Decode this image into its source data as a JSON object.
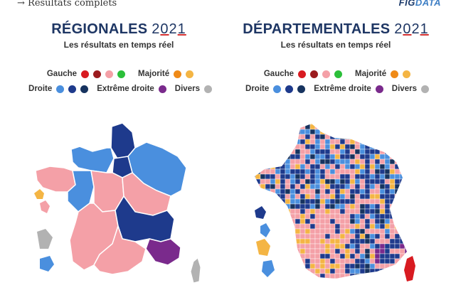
{
  "header": {
    "link": "→ Résultats complets",
    "brand_a": "FIG",
    "brand_b": "DATA"
  },
  "regional": {
    "title": "RÉGIONALES",
    "year_a": "2",
    "year_b": "0",
    "year_c": "2",
    "year_d": "1",
    "subtitle": "Les résultats en temps réel"
  },
  "departmental": {
    "title": "DÉPARTEMENTALES",
    "year_a": "2",
    "year_b": "0",
    "year_c": "2",
    "year_d": "1",
    "subtitle": "Les résultats en temps réel"
  },
  "legend": {
    "gauche": "Gauche",
    "majorite": "Majorité",
    "droite": "Droite",
    "extreme_droite": "Extrême droite",
    "divers": "Divers"
  },
  "colors": {
    "gauche_1": "#d81b21",
    "gauche_2": "#9b1b1e",
    "gauche_3": "#f4a0a7",
    "gauche_4": "#2bbf3a",
    "majorite_1": "#ef8a17",
    "majorite_2": "#f4b544",
    "droite_1": "#4a8fde",
    "droite_2": "#1e3a8c",
    "droite_3": "#17335f",
    "extreme_droite": "#7a2a8c",
    "divers": "#b2b2b2"
  }
}
